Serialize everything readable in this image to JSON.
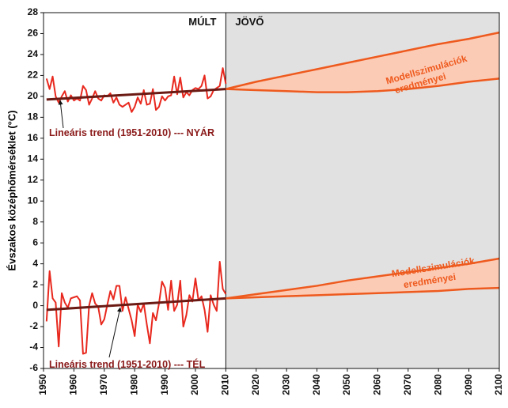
{
  "chart_data": {
    "type": "line",
    "y_axis_label": "Évszakos középhőmérséklet (°C)",
    "xlim": [
      1950,
      2100
    ],
    "xticks": [
      1950,
      1960,
      1970,
      1980,
      1990,
      2000,
      2010,
      2020,
      2030,
      2040,
      2050,
      2060,
      2070,
      2080,
      2090,
      2100
    ],
    "ylim": [
      -6,
      28
    ],
    "yticks": [
      -6,
      -4,
      -2,
      0,
      2,
      4,
      6,
      8,
      10,
      12,
      14,
      16,
      18,
      20,
      22,
      24,
      26,
      28
    ],
    "future_region": {
      "range": [
        2010,
        2100
      ],
      "color": "#e1e1e1"
    },
    "period_labels": [
      "MÚLT",
      "JÖVŐ"
    ],
    "series": [
      {
        "color": "#e8281e",
        "x": [
          1951,
          1952,
          1953,
          1954,
          1955,
          1956,
          1957,
          1958,
          1959,
          1960,
          1961,
          1962,
          1963,
          1964,
          1965,
          1966,
          1967,
          1968,
          1969,
          1970,
          1971,
          1972,
          1973,
          1974,
          1975,
          1976,
          1977,
          1978,
          1979,
          1980,
          1981,
          1982,
          1983,
          1984,
          1985,
          1986,
          1987,
          1988,
          1989,
          1990,
          1991,
          1992,
          1993,
          1994,
          1995,
          1996,
          1997,
          1998,
          1999,
          2000,
          2001,
          2002,
          2003,
          2004,
          2005,
          2006,
          2007,
          2008,
          2009,
          2010
        ],
        "values": [
          21.7,
          20.7,
          21.9,
          20.0,
          19.4,
          20.0,
          20.5,
          19.5,
          20.1,
          19.6,
          19.8,
          19.6,
          21.0,
          20.6,
          19.2,
          19.8,
          20.5,
          19.8,
          19.6,
          20.1,
          20.0,
          20.3,
          19.4,
          19.9,
          19.2,
          19.0,
          19.2,
          19.4,
          18.5,
          19.0,
          19.9,
          19.3,
          20.6,
          19.2,
          19.3,
          20.7,
          18.7,
          19.0,
          20.0,
          19.6,
          20.0,
          20.1,
          21.9,
          20.2,
          21.8,
          19.9,
          20.4,
          20.1,
          20.6,
          20.8,
          20.7,
          21.0,
          22.0,
          19.8,
          20.0,
          20.6,
          20.8,
          21.0,
          22.7,
          21.2
        ]
      },
      {
        "color": "#6b1a14",
        "x": [
          1951,
          2010
        ],
        "values": [
          19.7,
          20.7
        ]
      },
      {
        "color": "#e8281e",
        "x": [
          1951,
          1952,
          1953,
          1954,
          1955,
          1956,
          1957,
          1958,
          1959,
          1960,
          1961,
          1962,
          1963,
          1964,
          1965,
          1966,
          1967,
          1968,
          1969,
          1970,
          1971,
          1972,
          1973,
          1974,
          1975,
          1976,
          1977,
          1978,
          1979,
          1980,
          1981,
          1982,
          1983,
          1984,
          1985,
          1986,
          1987,
          1988,
          1989,
          1990,
          1991,
          1992,
          1993,
          1994,
          1995,
          1996,
          1997,
          1998,
          1999,
          2000,
          2001,
          2002,
          2003,
          2004,
          2005,
          2006,
          2007,
          2008,
          2009,
          2010
        ],
        "values": [
          -1.5,
          3.3,
          0.7,
          0.3,
          -3.9,
          1.2,
          0.3,
          -0.2,
          0.7,
          0.8,
          0.9,
          0.5,
          -4.6,
          -4.5,
          0.0,
          1.2,
          0.2,
          -0.1,
          -1.8,
          -1.3,
          0.1,
          1.4,
          0.6,
          1.9,
          1.9,
          -0.5,
          0.8,
          -0.3,
          -1.4,
          -2.9,
          0.1,
          -0.6,
          0.2,
          -1.8,
          -3.6,
          -0.7,
          -1.4,
          0.2,
          2.3,
          1.7,
          -0.4,
          2.4,
          -0.5,
          0.1,
          2.4,
          -2.0,
          -0.9,
          1.0,
          0.4,
          2.6,
          0.5,
          0.9,
          -0.4,
          -2.5,
          1.0,
          0.1,
          -0.5,
          4.2,
          1.6,
          1.1
        ]
      },
      {
        "color": "#6b1a14",
        "x": [
          1951,
          2010
        ],
        "values": [
          -0.4,
          0.7
        ]
      }
    ],
    "bands": [
      {
        "color": "#ee5a1e",
        "fill": "#fccbb6",
        "x": [
          2010,
          2020,
          2030,
          2040,
          2050,
          2060,
          2070,
          2080,
          2090,
          2100
        ],
        "upper": [
          20.7,
          21.4,
          22.0,
          22.6,
          23.2,
          23.8,
          24.4,
          25.0,
          25.5,
          26.1
        ],
        "lower": [
          20.7,
          20.6,
          20.5,
          20.4,
          20.4,
          20.5,
          20.7,
          21.0,
          21.4,
          21.7
        ],
        "label": [
          "Modellszimulációk",
          "eredményei"
        ]
      },
      {
        "color": "#ee5a1e",
        "fill": "#fccbb6",
        "x": [
          2010,
          2020,
          2030,
          2040,
          2050,
          2060,
          2070,
          2080,
          2090,
          2100
        ],
        "upper": [
          0.7,
          1.1,
          1.5,
          1.9,
          2.4,
          2.8,
          3.2,
          3.6,
          4.0,
          4.5
        ],
        "lower": [
          0.7,
          0.8,
          0.9,
          1.0,
          1.1,
          1.2,
          1.3,
          1.4,
          1.6,
          1.7
        ],
        "label": [
          "Modellszimulációk",
          "eredményei"
        ]
      }
    ],
    "annotations": [
      "Lineáris trend (1951-2010) --- NYÁR",
      "Lineáris trend (1951-2010) --- TÉL"
    ],
    "annotation_color": "#8b1a1a"
  }
}
